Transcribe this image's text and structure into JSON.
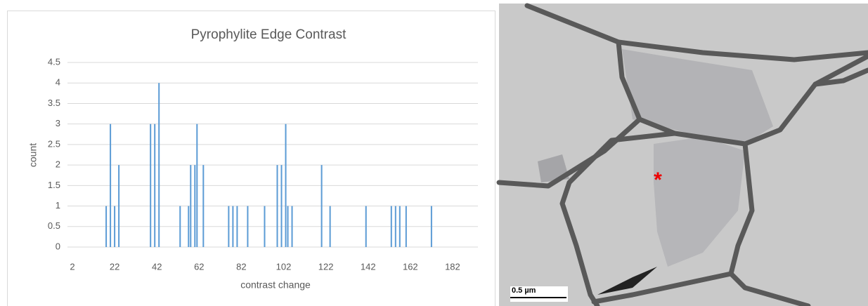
{
  "chart_data": {
    "type": "bar",
    "title": "Pyrophylite Edge Contrast",
    "x_label": "contrast change",
    "y_label": "count",
    "x": [
      18,
      20,
      22,
      24,
      39,
      41,
      43,
      53,
      57,
      58,
      60,
      61,
      64,
      76,
      78,
      80,
      85,
      93,
      99,
      101,
      103,
      104,
      106,
      120,
      124,
      141,
      153,
      155,
      157,
      160,
      172
    ],
    "values": [
      1,
      3,
      1,
      2,
      3,
      3,
      4,
      1,
      1,
      2,
      2,
      3,
      2,
      1,
      1,
      1,
      1,
      1,
      2,
      2,
      3,
      1,
      1,
      2,
      1,
      1,
      1,
      1,
      1,
      1,
      1
    ],
    "color": "#5b9bd5",
    "xlim": [
      2,
      194
    ],
    "xticks": [
      2,
      22,
      42,
      62,
      82,
      102,
      122,
      142,
      162,
      182
    ],
    "ylim": [
      0,
      4.5
    ],
    "yticks": [
      0,
      0.5,
      1,
      1.5,
      2,
      2.5,
      3,
      3.5,
      4,
      4.5
    ],
    "grid": true
  },
  "image": {
    "marker": "*",
    "scale_bar": "0.5 µm"
  }
}
